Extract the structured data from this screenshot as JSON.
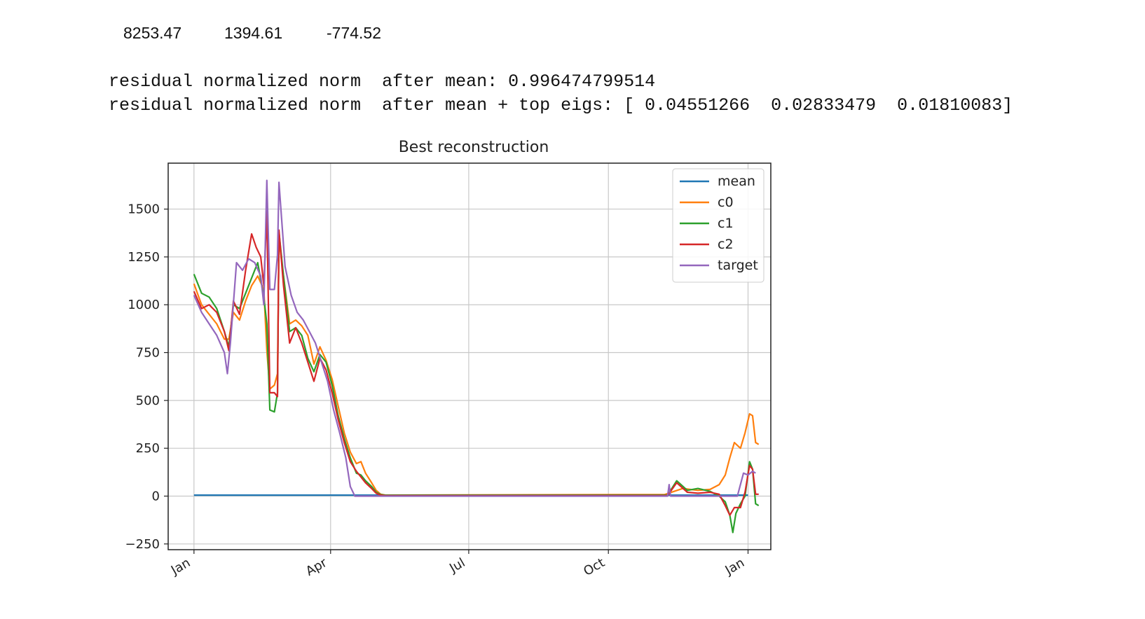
{
  "output": {
    "coefficients": [
      "8253.47",
      "1394.61",
      "-774.52"
    ],
    "line_1": "residual normalized norm  after mean: 0.996474799514",
    "line_2": "residual normalized norm  after mean + top eigs: [ 0.04551266  0.02833479  0.01810083]"
  },
  "chart_data": {
    "type": "line",
    "title": "Best reconstruction",
    "xlabel": "",
    "ylabel": "",
    "x_tick_labels": [
      "Jan",
      "Apr",
      "Jul",
      "Oct",
      "Jan"
    ],
    "x_tick_values": [
      0,
      90,
      181,
      273,
      365
    ],
    "xlim": [
      -17,
      380
    ],
    "y_tick_labels": [
      "−250",
      "0",
      "250",
      "500",
      "750",
      "1000",
      "1250",
      "1500"
    ],
    "y_tick_values": [
      -250,
      0,
      250,
      500,
      750,
      1000,
      1250,
      1500
    ],
    "ylim": [
      -280,
      1740
    ],
    "grid": true,
    "legend_position": "top-right",
    "series": [
      {
        "name": "mean",
        "color": "#1f77b4",
        "points": [
          [
            0,
            5
          ],
          [
            365,
            5
          ]
        ]
      },
      {
        "name": "c0",
        "color": "#ff7f0e",
        "points": [
          [
            0,
            1110
          ],
          [
            5,
            1000
          ],
          [
            10,
            950
          ],
          [
            15,
            900
          ],
          [
            20,
            820
          ],
          [
            23,
            820
          ],
          [
            26,
            960
          ],
          [
            30,
            920
          ],
          [
            34,
            1020
          ],
          [
            38,
            1100
          ],
          [
            42,
            1150
          ],
          [
            46,
            1080
          ],
          [
            48,
            760
          ],
          [
            50,
            560
          ],
          [
            53,
            580
          ],
          [
            55,
            640
          ],
          [
            56,
            1340
          ],
          [
            59,
            1150
          ],
          [
            63,
            900
          ],
          [
            67,
            920
          ],
          [
            71,
            890
          ],
          [
            75,
            840
          ],
          [
            79,
            690
          ],
          [
            83,
            780
          ],
          [
            87,
            710
          ],
          [
            91,
            610
          ],
          [
            95,
            470
          ],
          [
            99,
            330
          ],
          [
            103,
            230
          ],
          [
            107,
            170
          ],
          [
            110,
            180
          ],
          [
            113,
            120
          ],
          [
            117,
            70
          ],
          [
            120,
            30
          ],
          [
            123,
            10
          ],
          [
            126,
            5
          ],
          [
            290,
            8
          ],
          [
            310,
            8
          ],
          [
            322,
            40
          ],
          [
            332,
            30
          ],
          [
            340,
            35
          ],
          [
            346,
            60
          ],
          [
            350,
            110
          ],
          [
            353,
            200
          ],
          [
            356,
            280
          ],
          [
            360,
            250
          ],
          [
            363,
            330
          ],
          [
            366,
            430
          ],
          [
            368,
            420
          ],
          [
            370,
            280
          ],
          [
            372,
            270
          ]
        ]
      },
      {
        "name": "c1",
        "color": "#2ca02c",
        "points": [
          [
            0,
            1160
          ],
          [
            5,
            1060
          ],
          [
            10,
            1040
          ],
          [
            15,
            980
          ],
          [
            20,
            860
          ],
          [
            23,
            780
          ],
          [
            26,
            1000
          ],
          [
            30,
            980
          ],
          [
            34,
            1060
          ],
          [
            38,
            1140
          ],
          [
            42,
            1220
          ],
          [
            46,
            1040
          ],
          [
            48,
            900
          ],
          [
            50,
            450
          ],
          [
            53,
            440
          ],
          [
            55,
            540
          ],
          [
            56,
            1380
          ],
          [
            59,
            1150
          ],
          [
            63,
            860
          ],
          [
            67,
            880
          ],
          [
            71,
            840
          ],
          [
            75,
            720
          ],
          [
            79,
            650
          ],
          [
            83,
            740
          ],
          [
            87,
            700
          ],
          [
            91,
            580
          ],
          [
            95,
            420
          ],
          [
            99,
            300
          ],
          [
            103,
            200
          ],
          [
            107,
            120
          ],
          [
            110,
            110
          ],
          [
            113,
            80
          ],
          [
            117,
            50
          ],
          [
            120,
            20
          ],
          [
            123,
            8
          ],
          [
            126,
            5
          ],
          [
            290,
            5
          ],
          [
            312,
            5
          ],
          [
            318,
            80
          ],
          [
            325,
            30
          ],
          [
            332,
            40
          ],
          [
            340,
            25
          ],
          [
            346,
            0
          ],
          [
            350,
            -30
          ],
          [
            353,
            -100
          ],
          [
            355,
            -190
          ],
          [
            357,
            -90
          ],
          [
            360,
            -40
          ],
          [
            363,
            0
          ],
          [
            366,
            180
          ],
          [
            368,
            140
          ],
          [
            370,
            -40
          ],
          [
            372,
            -50
          ]
        ]
      },
      {
        "name": "c2",
        "color": "#d62728",
        "points": [
          [
            0,
            1070
          ],
          [
            5,
            980
          ],
          [
            10,
            1000
          ],
          [
            15,
            960
          ],
          [
            20,
            860
          ],
          [
            23,
            760
          ],
          [
            26,
            1020
          ],
          [
            30,
            950
          ],
          [
            34,
            1180
          ],
          [
            38,
            1370
          ],
          [
            41,
            1300
          ],
          [
            44,
            1250
          ],
          [
            46,
            1100
          ],
          [
            48,
            1490
          ],
          [
            50,
            540
          ],
          [
            53,
            540
          ],
          [
            55,
            520
          ],
          [
            56,
            1390
          ],
          [
            59,
            1100
          ],
          [
            63,
            800
          ],
          [
            67,
            880
          ],
          [
            71,
            800
          ],
          [
            75,
            700
          ],
          [
            79,
            600
          ],
          [
            83,
            720
          ],
          [
            87,
            660
          ],
          [
            91,
            540
          ],
          [
            95,
            400
          ],
          [
            99,
            280
          ],
          [
            103,
            180
          ],
          [
            107,
            130
          ],
          [
            110,
            100
          ],
          [
            113,
            70
          ],
          [
            117,
            40
          ],
          [
            120,
            15
          ],
          [
            123,
            5
          ],
          [
            126,
            3
          ],
          [
            290,
            3
          ],
          [
            312,
            3
          ],
          [
            318,
            70
          ],
          [
            325,
            20
          ],
          [
            332,
            15
          ],
          [
            340,
            20
          ],
          [
            346,
            10
          ],
          [
            350,
            -50
          ],
          [
            353,
            -100
          ],
          [
            356,
            -60
          ],
          [
            360,
            -60
          ],
          [
            363,
            20
          ],
          [
            366,
            160
          ],
          [
            368,
            140
          ],
          [
            370,
            10
          ],
          [
            372,
            10
          ]
        ]
      },
      {
        "name": "target",
        "color": "#9467bd",
        "points": [
          [
            0,
            1050
          ],
          [
            5,
            960
          ],
          [
            10,
            900
          ],
          [
            15,
            840
          ],
          [
            20,
            750
          ],
          [
            22,
            640
          ],
          [
            24,
            800
          ],
          [
            28,
            1220
          ],
          [
            32,
            1180
          ],
          [
            36,
            1240
          ],
          [
            40,
            1220
          ],
          [
            44,
            1150
          ],
          [
            46,
            1000
          ],
          [
            48,
            1650
          ],
          [
            50,
            1080
          ],
          [
            53,
            1080
          ],
          [
            55,
            1260
          ],
          [
            56,
            1640
          ],
          [
            60,
            1200
          ],
          [
            64,
            1050
          ],
          [
            68,
            960
          ],
          [
            72,
            920
          ],
          [
            76,
            860
          ],
          [
            80,
            800
          ],
          [
            84,
            700
          ],
          [
            88,
            600
          ],
          [
            92,
            450
          ],
          [
            96,
            330
          ],
          [
            100,
            200
          ],
          [
            103,
            50
          ],
          [
            106,
            0
          ],
          [
            290,
            0
          ],
          [
            312,
            0
          ],
          [
            313,
            60
          ],
          [
            314,
            0
          ],
          [
            340,
            0
          ],
          [
            358,
            0
          ],
          [
            362,
            120
          ],
          [
            365,
            110
          ],
          [
            368,
            130
          ],
          [
            370,
            120
          ]
        ]
      }
    ]
  }
}
